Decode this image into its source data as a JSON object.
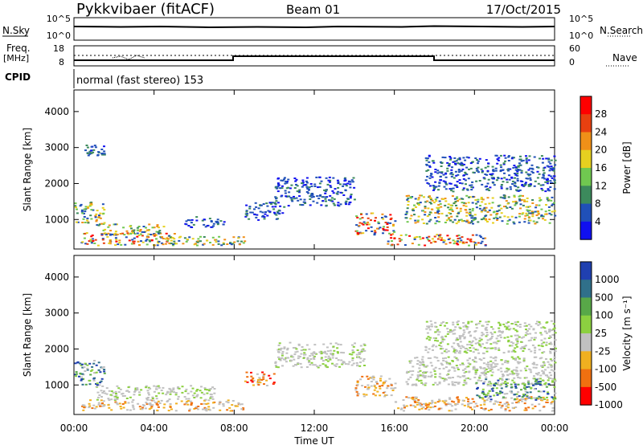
{
  "header": {
    "station": "Pykkvibaer (fitACF)",
    "beam": "Beam 01",
    "date": "17/Oct/2015"
  },
  "sky_panel": {
    "left_label": "N.Sky",
    "right_label": "N.Search",
    "left_ticks": [
      "10^5",
      "10^0"
    ],
    "right_ticks": [
      "10^5",
      "10^0"
    ]
  },
  "freq_panel": {
    "left_label": "Freq.",
    "left_unit": "[MHz]",
    "left_ticks": [
      "18",
      "8"
    ],
    "right_label": "Nave",
    "right_ticks": [
      "60",
      "0"
    ]
  },
  "cpid": {
    "label": "CPID",
    "mode": "normal (fast stereo) 153"
  },
  "time_axis": {
    "label": "Time UT",
    "ticks": [
      "00:00",
      "04:00",
      "08:00",
      "12:00",
      "16:00",
      "20:00",
      "00:00"
    ]
  },
  "chart_data": [
    {
      "type": "heatmap",
      "name": "Power",
      "xlabel": "Time UT",
      "ylabel": "Slant Range [km]",
      "ylim": [
        180,
        4600
      ],
      "yticks": [
        "1000",
        "2000",
        "3000",
        "4000"
      ],
      "colorbar_label": "Power [dB]",
      "colorbar_ticks": [
        "4",
        "8",
        "12",
        "16",
        "20",
        "24",
        "28"
      ],
      "colorbar_colors": [
        "#1010f0",
        "#2050b8",
        "#3c8a5c",
        "#70c850",
        "#e6d020",
        "#f09018",
        "#e84010",
        "#ff0000"
      ],
      "regions": [
        {
          "t0": 0.3,
          "t1": 5.0,
          "r0": 300,
          "r1": 650,
          "level": "high"
        },
        {
          "t0": 1.0,
          "t1": 4.5,
          "r0": 600,
          "r1": 900,
          "level": "mid"
        },
        {
          "t0": 0.0,
          "t1": 1.5,
          "r0": 900,
          "r1": 1500,
          "level": "mid"
        },
        {
          "t0": 3.5,
          "t1": 8.5,
          "r0": 300,
          "r1": 550,
          "level": "mid"
        },
        {
          "t0": 5.5,
          "t1": 7.5,
          "r0": 800,
          "r1": 1100,
          "level": "low"
        },
        {
          "t0": 8.5,
          "t1": 10.5,
          "r0": 1000,
          "r1": 1500,
          "level": "low"
        },
        {
          "t0": 10.0,
          "t1": 14.0,
          "r0": 1400,
          "r1": 2200,
          "level": "low"
        },
        {
          "t0": 14.0,
          "t1": 16.0,
          "r0": 600,
          "r1": 1200,
          "level": "high"
        },
        {
          "t0": 15.5,
          "t1": 20.5,
          "r0": 300,
          "r1": 600,
          "level": "high"
        },
        {
          "t0": 16.5,
          "t1": 24.0,
          "r0": 900,
          "r1": 1700,
          "level": "mid"
        },
        {
          "t0": 17.5,
          "t1": 24.0,
          "r0": 1800,
          "r1": 2800,
          "level": "low"
        },
        {
          "t0": 0.5,
          "t1": 1.5,
          "r0": 2800,
          "r1": 3100,
          "level": "low"
        }
      ]
    },
    {
      "type": "heatmap",
      "name": "Velocity",
      "xlabel": "Time UT",
      "ylabel": "Slant Range [km]",
      "ylim": [
        180,
        4600
      ],
      "yticks": [
        "1000",
        "2000",
        "3000",
        "4000"
      ],
      "colorbar_label": "Velocity [m s⁻¹]",
      "colorbar_ticks": [
        "1000",
        "500",
        "100",
        "25",
        "-25",
        "-100",
        "-500",
        "-1000"
      ],
      "colorbar_colors": [
        "#2040b0",
        "#30708a",
        "#58a848",
        "#8cd040",
        "#c0c0c0",
        "#f0b020",
        "#f07010",
        "#ff0000"
      ],
      "regions": [
        {
          "t0": 0.3,
          "t1": 8.5,
          "r0": 300,
          "r1": 600,
          "level": "neg"
        },
        {
          "t0": 1.0,
          "t1": 7.0,
          "r0": 600,
          "r1": 1000,
          "level": "zero"
        },
        {
          "t0": 0.0,
          "t1": 1.5,
          "r0": 1000,
          "r1": 1700,
          "level": "pos"
        },
        {
          "t0": 8.5,
          "t1": 10.0,
          "r0": 1000,
          "r1": 1400,
          "level": "negstrong"
        },
        {
          "t0": 10.0,
          "t1": 14.5,
          "r0": 1500,
          "r1": 2200,
          "level": "zero"
        },
        {
          "t0": 14.0,
          "t1": 16.0,
          "r0": 700,
          "r1": 1300,
          "level": "neg"
        },
        {
          "t0": 16.0,
          "t1": 24.0,
          "r0": 300,
          "r1": 700,
          "level": "neg"
        },
        {
          "t0": 16.5,
          "t1": 24.0,
          "r0": 1000,
          "r1": 1800,
          "level": "zero"
        },
        {
          "t0": 20.0,
          "t1": 24.0,
          "r0": 600,
          "r1": 1200,
          "level": "pos"
        },
        {
          "t0": 17.5,
          "t1": 24.0,
          "r0": 1900,
          "r1": 2800,
          "level": "zero"
        }
      ]
    }
  ]
}
